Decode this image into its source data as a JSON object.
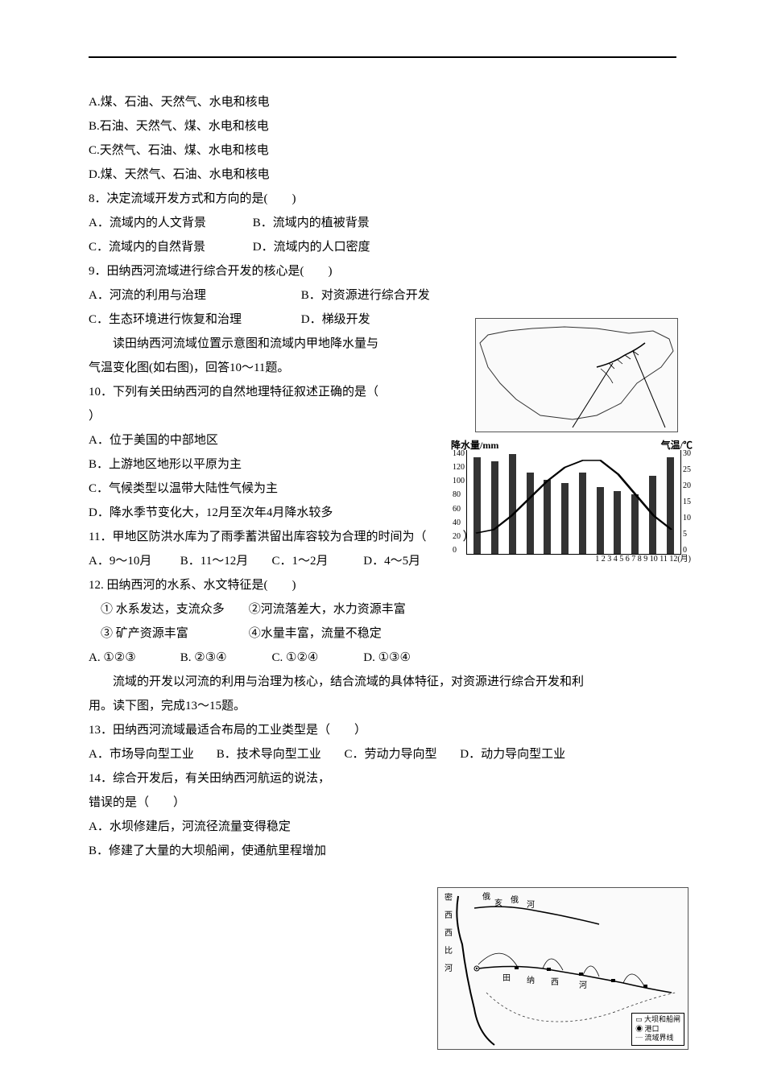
{
  "hr_color": "#000000",
  "q7_options": {
    "A": "A.煤、石油、天然气、水电和核电",
    "B": "B.石油、天然气、煤、水电和核电",
    "C": "C.天然气、石油、煤、水电和核电",
    "D": "D.煤、天然气、石油、水电和核电"
  },
  "q8": {
    "stem": "8．决定流域开发方式和方向的是(　　)",
    "A": "A．流域内的人文背景",
    "B": "B．流域内的植被背景",
    "C": "C．流域内的自然背景",
    "D": "D．流域内的人口密度"
  },
  "q9": {
    "stem": "9．田纳西河流域进行综合开发的核心是(　　)",
    "A": "A．河流的利用与治理",
    "B": "B．对资源进行综合开发",
    "C": "C．生态环境进行恢复和治理",
    "D": "D．梯级开发"
  },
  "passage1_l1": "读田纳西河流域位置示意图和流域内甲地降水量与",
  "passage1_l2": "气温变化图(如右图)，回答10～11题。",
  "q10": {
    "stem_a": "10．下列有关田纳西河的自然地理特征叙述正确的是（　",
    "stem_b": "）",
    "A": "A．位于美国的中部地区",
    "B": "B．上游地区地形以平原为主",
    "C": "C．气候类型以温带大陆性气候为主",
    "D": "D．降水季节变化大，12月至次年4月降水较多"
  },
  "q11": {
    "stem": "11．甲地区防洪水库为了雨季蓄洪留出库容较为合理的时间为（　　　）",
    "A": "A．9～10月",
    "B": "B．11～12月",
    "C": "C．1～2月",
    "D": "D．4～5月"
  },
  "q12": {
    "stem": "12. 田纳西河的水系、水文特征是(　　)",
    "i1": "① 水系发达，支流众多　　②河流落差大，水力资源丰富",
    "i2": "③ 矿产资源丰富　　　　　④水量丰富，流量不稳定",
    "A": "A. ①②③",
    "B": "B. ②③④",
    "C": "C. ①②④",
    "D": "D. ①③④"
  },
  "passage2_l1": "流域的开发以河流的利用与治理为核心，结合流域的具体特征，对资源进行综合开发和利",
  "passage2_l2": "用。读下图，完成13～15题。",
  "q13": {
    "stem": "13．田纳西河流域最适合布局的工业类型是（　　）",
    "A": "A．市场导向型工业",
    "B": "B．技术导向型工业",
    "C": "C．劳动力导向型",
    "D": "D．动力导向型工业"
  },
  "q14": {
    "stem": "14．综合开发后，有关田纳西河航运的说法，",
    "stem_b": "错误的是（　　）",
    "A": "A．水坝修建后，河流径流量变得稳定",
    "B": "B．修建了大量的大坝船闸，使通航里程增加"
  },
  "chart": {
    "precip_label": "降水量/mm",
    "temp_label": "气温/℃",
    "axis_unit": "1  2  3  4  5  6  7  8  9  10 11 12(月)",
    "yleft_ticks": [
      "140",
      "120",
      "100",
      "80",
      "60",
      "40",
      "20",
      "0"
    ],
    "yright_ticks": [
      "30",
      "25",
      "20",
      "15",
      "10",
      "5",
      "0"
    ],
    "precip_values": [
      130,
      125,
      135,
      110,
      100,
      95,
      110,
      90,
      85,
      80,
      105,
      130
    ],
    "precip_max": 140,
    "temp_values_c": [
      6,
      7,
      11,
      16,
      21,
      25,
      27,
      27,
      23,
      17,
      11,
      7
    ],
    "temp_max": 30,
    "bar_color": "#333333",
    "line_color": "#000000",
    "background_color": "#ffffff"
  },
  "fig2": {
    "river_labels": [
      "密",
      "西",
      "西",
      "比",
      "河",
      "俄",
      "亥",
      "俄",
      "河",
      "田",
      "纳",
      "西",
      "河"
    ],
    "legend": [
      "▭ 大坝和船闸",
      "◉ 港口",
      "┈ 流域界线"
    ]
  }
}
